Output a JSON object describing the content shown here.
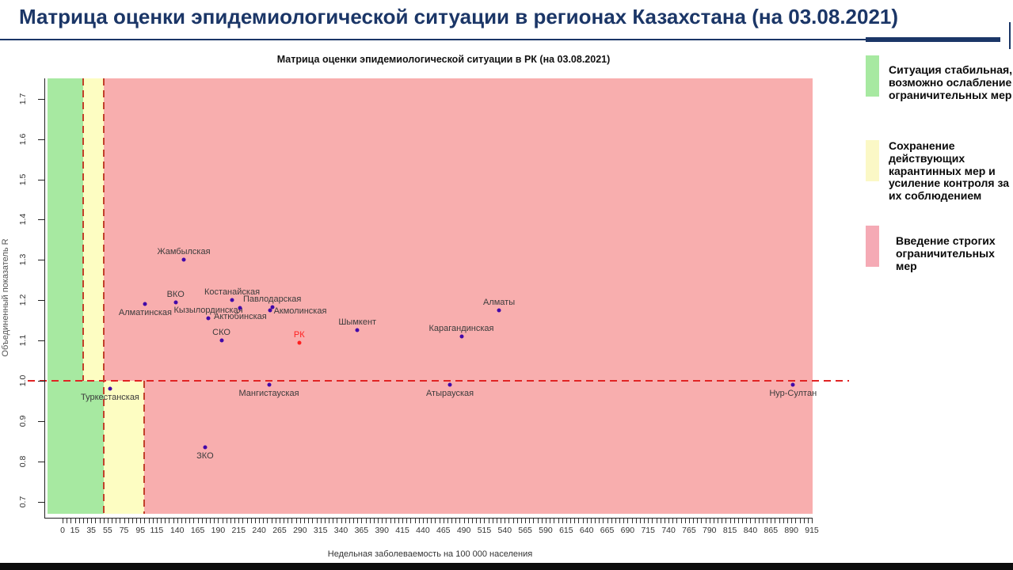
{
  "header": {
    "title": "Матрица оценки эпидемиологической ситуации в регионах Казахстана (на 03.08.2021)"
  },
  "chart_data": {
    "type": "scatter",
    "title": "Матрица оценки эпидемиологической ситуации в РК (на 03.08.2021)",
    "xlabel": "Недельная заболеваемость на 100 000 населения",
    "ylabel": "Объединенный показатель R",
    "xlim": [
      -18,
      916
    ],
    "ylim": [
      0.67,
      1.75
    ],
    "x_tick_labels": [
      0,
      15,
      35,
      55,
      75,
      95,
      115,
      140,
      165,
      190,
      215,
      240,
      265,
      290,
      315,
      340,
      365,
      390,
      415,
      440,
      465,
      490,
      515,
      540,
      565,
      590,
      615,
      640,
      665,
      690,
      715,
      740,
      765,
      790,
      815,
      840,
      865,
      890,
      915
    ],
    "x_minor_tick_step": 5,
    "y_ticks": [
      "0.7",
      "0.8",
      "0.9",
      "1.0",
      "1.1",
      "1.2",
      "1.3",
      "1.4",
      "1.5",
      "1.6",
      "1.7"
    ],
    "grid": false,
    "reference_lines": {
      "horizontal_r": 1.0,
      "vertical_above_r1": [
        25,
        50
      ],
      "vertical_below_r1": [
        50,
        100
      ]
    },
    "zones": {
      "above_r1": {
        "green": [
          -18,
          25
        ],
        "yellow": [
          25,
          50
        ],
        "pink": [
          50,
          916
        ]
      },
      "below_r1": {
        "green": [
          -18,
          50
        ],
        "yellow": [
          50,
          100
        ],
        "pink": [
          100,
          916
        ]
      }
    },
    "series": [
      {
        "name": "regions",
        "color": "#4209a8",
        "points": [
          {
            "name": "Жамбылская",
            "x": 148,
            "r": 1.3,
            "label": "above"
          },
          {
            "name": "Алматинская",
            "x": 101,
            "r": 1.19,
            "label": "below"
          },
          {
            "name": "ВКО",
            "x": 138,
            "r": 1.195,
            "label": "above"
          },
          {
            "name": "Костанайская",
            "x": 207,
            "r": 1.2,
            "label": "above"
          },
          {
            "name": "Кызылординская",
            "x": 178,
            "r": 1.155,
            "label": "above"
          },
          {
            "name": "Актюбинская",
            "x": 217,
            "r": 1.18,
            "label": "below"
          },
          {
            "name": "Павлодарская",
            "x": 256,
            "r": 1.182,
            "label": "above"
          },
          {
            "name": "Акмолинская",
            "x": 253,
            "r": 1.175,
            "label": "right"
          },
          {
            "name": "Шымкент",
            "x": 360,
            "r": 1.125,
            "label": "above"
          },
          {
            "name": "Карагандинская",
            "x": 487,
            "r": 1.11,
            "label": "above"
          },
          {
            "name": "Алматы",
            "x": 533,
            "r": 1.175,
            "label": "above"
          },
          {
            "name": "СКО",
            "x": 194,
            "r": 1.1,
            "label": "above"
          },
          {
            "name": "Туркестанская",
            "x": 58,
            "r": 0.98,
            "label": "below"
          },
          {
            "name": "Мангистауская",
            "x": 252,
            "r": 0.99,
            "label": "below"
          },
          {
            "name": "Атырауская",
            "x": 473,
            "r": 0.99,
            "label": "below"
          },
          {
            "name": "Нур-Султан",
            "x": 892,
            "r": 0.99,
            "label": "below"
          },
          {
            "name": "ЗКО",
            "x": 174,
            "r": 0.835,
            "label": "below"
          }
        ]
      },
      {
        "name": "РК",
        "color": "#ff1f1f",
        "points": [
          {
            "name": "РК",
            "x": 289,
            "r": 1.095,
            "label": "above"
          }
        ]
      }
    ]
  },
  "legend": {
    "items": [
      {
        "color": "#a7e9a1",
        "lines": [
          "Ситуация стабильная,",
          "возможно ослабление",
          "ограничительных мер"
        ]
      },
      {
        "color": "#fbf8c6",
        "lines": [
          "Сохранение",
          "действующих",
          "карантинных мер и",
          "усиление контроля за",
          "их соблюдением"
        ]
      },
      {
        "color": "#f5aab5",
        "lines": [
          "Введение строгих",
          "ограничительных",
          "мер"
        ]
      }
    ]
  },
  "colors": {
    "zone_green": "#a7e9a1",
    "zone_yellow": "#fdfdc2",
    "zone_pink": "#f8aeae",
    "dash_horizontal": "#e02424",
    "dash_vertical": "#c2402a",
    "point_blue": "#4209a8",
    "point_red": "#ff1f1f",
    "navy": "#1b3667"
  }
}
